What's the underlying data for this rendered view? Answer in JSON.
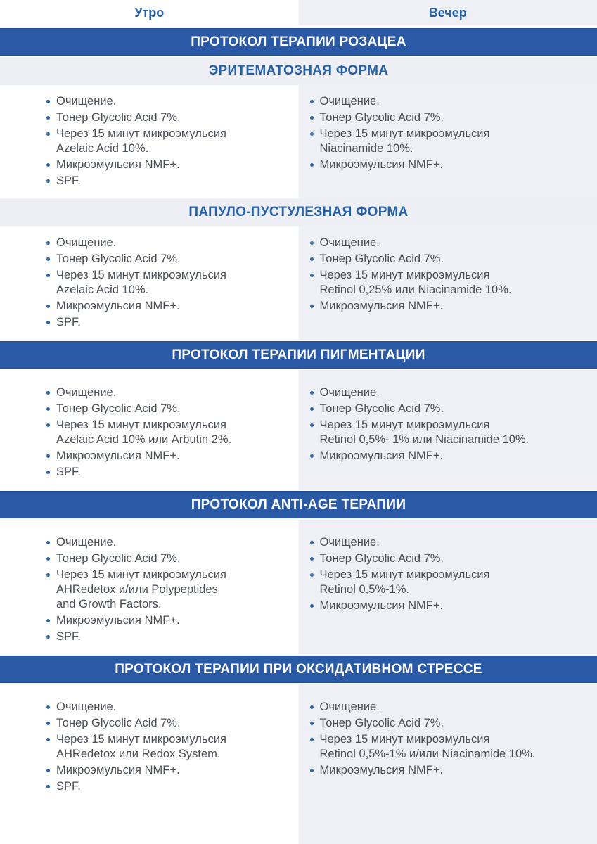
{
  "columns": {
    "morning": "Утро",
    "evening": "Вечер"
  },
  "colors": {
    "band_blue": "#2a5aa5",
    "accent_blue": "#2660a9",
    "bullet_blue": "#2f66ae",
    "panel_gray": "#eef0f6",
    "body_text": "#4a4f55",
    "band_text": "#ffffff"
  },
  "sections": [
    {
      "kind": "protocol-title",
      "title": "ПРОТОКОЛ ТЕРАПИИ РОЗАЦЕА"
    },
    {
      "kind": "form",
      "title": "ЭРИТЕМАТОЗНАЯ ФОРМА",
      "morning": [
        "Очищение.",
        "Тонер Glycolic Acid 7%.",
        "Через 15 минут микроэмульсия\nAzelaic Acid 10%.",
        "Микроэмульсия NMF+.",
        "SPF."
      ],
      "evening": [
        "Очищение.",
        "Тонер Glycolic Acid 7%.",
        "Через 15 минут микроэмульсия\nNiacinamide 10%.",
        "Микроэмульсия NMF+."
      ]
    },
    {
      "kind": "form",
      "title": "ПАПУЛО-ПУСТУЛЕЗНАЯ ФОРМА",
      "morning": [
        "Очищение.",
        "Тонер Glycolic Acid 7%.",
        "Через 15 минут микроэмульсия\nAzelaic Acid 10%.",
        "Микроэмульсия NMF+.",
        "SPF."
      ],
      "evening": [
        "Очищение.",
        "Тонер Glycolic Acid 7%.",
        "Через 15 минут микроэмульсия\nRetinol 0,25% или Niacinamide 10%.",
        "Микроэмульсия NMF+."
      ]
    },
    {
      "kind": "protocol",
      "title": "ПРОТОКОЛ ТЕРАПИИ ПИГМЕНТАЦИИ",
      "morning": [
        "Очищение.",
        "Тонер Glycolic Acid 7%.",
        "Через 15 минут микроэмульсия\nAzelaic Acid 10% или Arbutin 2%.",
        "Микроэмульсия NMF+.",
        "SPF."
      ],
      "evening": [
        "Очищение.",
        "Тонер Glycolic Acid 7%.",
        "Через 15 минут микроэмульсия\nRetinol 0,5%- 1% или Niacinamide 10%.",
        "Микроэмульсия NMF+."
      ]
    },
    {
      "kind": "protocol",
      "title": "ПРОТОКОЛ ANTI-AGE ТЕРАПИИ",
      "morning": [
        "Очищение.",
        "Тонер Glycolic Acid 7%.",
        "Через 15 минут микроэмульсия\nAHRedetox и/или Polypeptides\nand Growth Factors.",
        "Микроэмульсия NMF+.",
        "SPF."
      ],
      "evening": [
        "Очищение.",
        "Тонер Glycolic Acid 7%.",
        "Через 15 минут микроэмульсия\nRetinol 0,5%-1%.",
        "Микроэмульсия NMF+."
      ]
    },
    {
      "kind": "protocol",
      "title": "ПРОТОКОЛ ТЕРАПИИ ПРИ ОКСИДАТИВНОМ СТРЕССЕ",
      "morning": [
        "Очищение.",
        "Тонер Glycolic Acid 7%.",
        "Через 15 минут микроэмульсия\nAHRedetox или Redox System.",
        "Микроэмульсия NMF+.",
        "SPF."
      ],
      "evening": [
        "Очищение.",
        "Тонер Glycolic Acid 7%.",
        "Через 15 минут микроэмульсия\nRetinol 0,5%-1% и/или Niacinamide 10%.",
        "Микроэмульсия NMF+."
      ]
    }
  ]
}
